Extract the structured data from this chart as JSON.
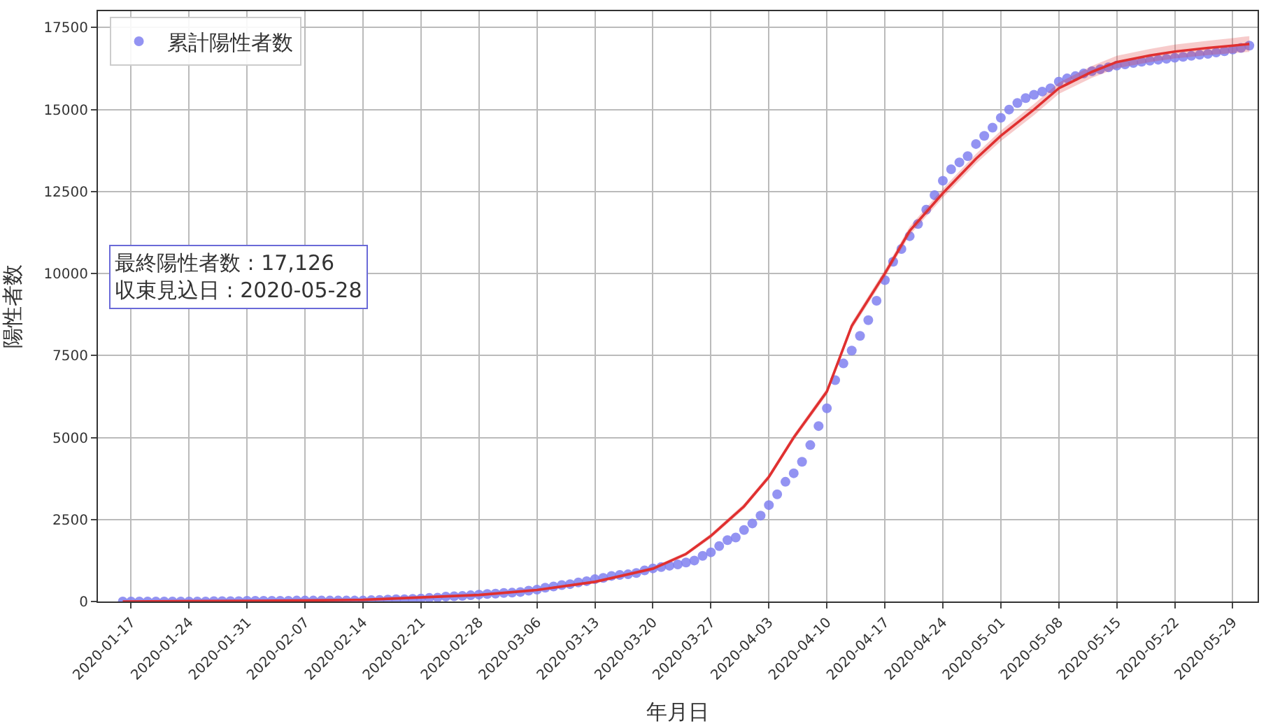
{
  "chart_data": {
    "type": "scatter",
    "xlabel": "年月日",
    "ylabel": "陽性者数",
    "annotations": [
      "最終陽性者数 : 17,126\n収束見込日 : 2020-05-28"
    ],
    "xlim": [
      "2020-01-13",
      "2020-06-01"
    ],
    "xticks": [
      "2020-01-17",
      "2020-01-24",
      "2020-01-31",
      "2020-02-07",
      "2020-02-14",
      "2020-02-21",
      "2020-02-28",
      "2020-03-06",
      "2020-03-13",
      "2020-03-20",
      "2020-03-27",
      "2020-04-03",
      "2020-04-10",
      "2020-04-17",
      "2020-04-24",
      "2020-05-01",
      "2020-05-08",
      "2020-05-15",
      "2020-05-22",
      "2020-05-29"
    ],
    "ylim": [
      0,
      18000
    ],
    "yticks": [
      0,
      2500,
      5000,
      7500,
      10000,
      12500,
      15000,
      17500
    ],
    "grid": true,
    "legend": "top left",
    "series": [
      {
        "name": "累計陽性者数",
        "color": "#8080f0",
        "marker": "circle",
        "x": [
          "2020-01-16",
          "2020-01-17",
          "2020-01-18",
          "2020-01-19",
          "2020-01-20",
          "2020-01-21",
          "2020-01-22",
          "2020-01-23",
          "2020-01-24",
          "2020-01-25",
          "2020-01-26",
          "2020-01-27",
          "2020-01-28",
          "2020-01-29",
          "2020-01-30",
          "2020-01-31",
          "2020-02-01",
          "2020-02-02",
          "2020-02-03",
          "2020-02-04",
          "2020-02-05",
          "2020-02-06",
          "2020-02-07",
          "2020-02-08",
          "2020-02-09",
          "2020-02-10",
          "2020-02-11",
          "2020-02-12",
          "2020-02-13",
          "2020-02-14",
          "2020-02-15",
          "2020-02-16",
          "2020-02-17",
          "2020-02-18",
          "2020-02-19",
          "2020-02-20",
          "2020-02-21",
          "2020-02-22",
          "2020-02-23",
          "2020-02-24",
          "2020-02-25",
          "2020-02-26",
          "2020-02-27",
          "2020-02-28",
          "2020-02-29",
          "2020-03-01",
          "2020-03-02",
          "2020-03-03",
          "2020-03-04",
          "2020-03-05",
          "2020-03-06",
          "2020-03-07",
          "2020-03-08",
          "2020-03-09",
          "2020-03-10",
          "2020-03-11",
          "2020-03-12",
          "2020-03-13",
          "2020-03-14",
          "2020-03-15",
          "2020-03-16",
          "2020-03-17",
          "2020-03-18",
          "2020-03-19",
          "2020-03-20",
          "2020-03-21",
          "2020-03-22",
          "2020-03-23",
          "2020-03-24",
          "2020-03-25",
          "2020-03-26",
          "2020-03-27",
          "2020-03-28",
          "2020-03-29",
          "2020-03-30",
          "2020-03-31",
          "2020-04-01",
          "2020-04-02",
          "2020-04-03",
          "2020-04-04",
          "2020-04-05",
          "2020-04-06",
          "2020-04-07",
          "2020-04-08",
          "2020-04-09",
          "2020-04-10",
          "2020-04-11",
          "2020-04-12",
          "2020-04-13",
          "2020-04-14",
          "2020-04-15",
          "2020-04-16",
          "2020-04-17",
          "2020-04-18",
          "2020-04-19",
          "2020-04-20",
          "2020-04-21",
          "2020-04-22",
          "2020-04-23",
          "2020-04-24",
          "2020-04-25",
          "2020-04-26",
          "2020-04-27",
          "2020-04-28",
          "2020-04-29",
          "2020-04-30",
          "2020-05-01",
          "2020-05-02",
          "2020-05-03",
          "2020-05-04",
          "2020-05-05",
          "2020-05-06",
          "2020-05-07",
          "2020-05-08",
          "2020-05-09",
          "2020-05-10",
          "2020-05-11",
          "2020-05-12",
          "2020-05-13",
          "2020-05-14",
          "2020-05-15",
          "2020-05-16",
          "2020-05-17",
          "2020-05-18",
          "2020-05-19",
          "2020-05-20",
          "2020-05-21",
          "2020-05-22",
          "2020-05-23",
          "2020-05-24",
          "2020-05-25",
          "2020-05-26",
          "2020-05-27",
          "2020-05-28",
          "2020-05-29",
          "2020-05-30",
          "2020-05-31"
        ],
        "values": [
          0,
          0,
          0,
          0,
          0,
          0,
          0,
          0,
          0,
          0,
          0,
          10,
          10,
          10,
          10,
          20,
          20,
          20,
          20,
          20,
          20,
          30,
          30,
          30,
          30,
          30,
          30,
          30,
          30,
          30,
          40,
          50,
          60,
          70,
          70,
          80,
          90,
          110,
          120,
          150,
          160,
          170,
          190,
          210,
          230,
          240,
          260,
          270,
          290,
          330,
          360,
          420,
          460,
          500,
          530,
          580,
          620,
          680,
          720,
          780,
          810,
          830,
          870,
          950,
          1010,
          1050,
          1090,
          1130,
          1190,
          1250,
          1390,
          1500,
          1690,
          1870,
          1950,
          2180,
          2380,
          2620,
          2940,
          3270,
          3650,
          3910,
          4260,
          4770,
          5350,
          5890,
          6750,
          7260,
          7650,
          8100,
          8580,
          9170,
          9800,
          10360,
          10750,
          11140,
          11510,
          11950,
          12390,
          12830,
          13180,
          13390,
          13580,
          13950,
          14200,
          14450,
          14750,
          15000,
          15200,
          15350,
          15450,
          15550,
          15650,
          15850,
          15950,
          16020,
          16100,
          16170,
          16230,
          16290,
          16340,
          16380,
          16420,
          16460,
          16490,
          16520,
          16550,
          16580,
          16610,
          16640,
          16670,
          16700,
          16740,
          16780,
          16830,
          16880,
          16950
        ]
      },
      {
        "type": "line",
        "marker": "none",
        "line_style": "solid",
        "color": "#e03030",
        "x": [
          "2020-01-16",
          "2020-02-01",
          "2020-02-14",
          "2020-02-28",
          "2020-03-06",
          "2020-03-13",
          "2020-03-20",
          "2020-03-24",
          "2020-03-27",
          "2020-03-31",
          "2020-04-03",
          "2020-04-06",
          "2020-04-10",
          "2020-04-13",
          "2020-04-17",
          "2020-04-20",
          "2020-04-24",
          "2020-04-28",
          "2020-05-01",
          "2020-05-05",
          "2020-05-08",
          "2020-05-12",
          "2020-05-15",
          "2020-05-19",
          "2020-05-22",
          "2020-05-26",
          "2020-05-29",
          "2020-05-31"
        ],
        "values": [
          0,
          20,
          50,
          200,
          350,
          600,
          1000,
          1450,
          2000,
          2900,
          3800,
          5000,
          6400,
          8400,
          10000,
          11300,
          12450,
          13500,
          14200,
          15000,
          15650,
          16150,
          16450,
          16650,
          16770,
          16880,
          16950,
          17000
        ],
        "lower": [
          0,
          10,
          40,
          180,
          320,
          560,
          950,
          1390,
          1930,
          2820,
          3720,
          4910,
          6300,
          8290,
          9880,
          11170,
          12310,
          13350,
          14040,
          14830,
          15480,
          15970,
          16260,
          16450,
          16560,
          16660,
          16720,
          16760
        ],
        "upper": [
          10,
          30,
          70,
          220,
          380,
          640,
          1050,
          1510,
          2070,
          2980,
          3880,
          5090,
          6500,
          8510,
          10120,
          11430,
          12590,
          13650,
          14360,
          15170,
          15820,
          16330,
          16640,
          16850,
          16980,
          17100,
          17180,
          17240
        ]
      }
    ]
  }
}
